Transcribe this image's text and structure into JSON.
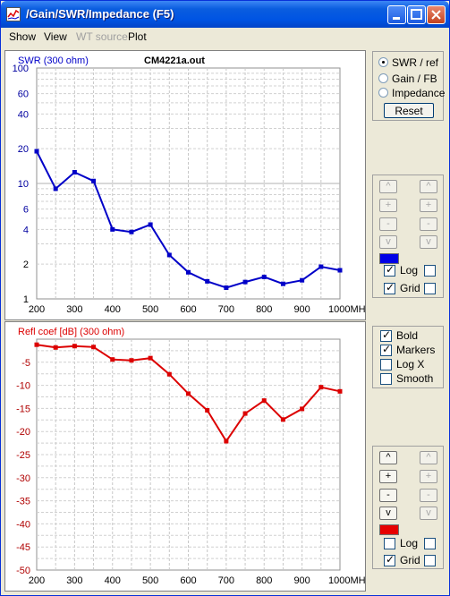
{
  "window": {
    "title": "/Gain/SWR/Impedance (F5)",
    "buttons": [
      "minimize",
      "maximize",
      "close"
    ]
  },
  "menu": {
    "items": [
      {
        "label": "Show",
        "enabled": true
      },
      {
        "label": "View",
        "enabled": true
      },
      {
        "label": "WT source",
        "enabled": false
      },
      {
        "label": "Plot",
        "enabled": true
      }
    ]
  },
  "chart_data": [
    {
      "type": "line",
      "title": "CM4221a.out",
      "ylabel": "SWR (300 ohm)",
      "xunit": "MHz",
      "x_ticks": [
        "200",
        "300",
        "400",
        "500",
        "600",
        "700",
        "800",
        "900",
        "1000MHz"
      ],
      "y_scale": "log",
      "y_ticks": [
        "100",
        "60",
        "40",
        "20",
        "10",
        "6",
        "4",
        "2",
        "1"
      ],
      "ylim": [
        1,
        100
      ],
      "xlim": [
        200,
        1000
      ],
      "grid": true,
      "color": "#0000c8",
      "series": [
        {
          "x": [
            200,
            250,
            300,
            350,
            400,
            450,
            500,
            550,
            600,
            650,
            700,
            750,
            800,
            850,
            900,
            950,
            1000
          ],
          "values": [
            19,
            9,
            12.5,
            10.5,
            4,
            3.8,
            4.4,
            2.4,
            1.7,
            1.42,
            1.25,
            1.4,
            1.55,
            1.35,
            1.45,
            1.9,
            1.77
          ]
        }
      ]
    },
    {
      "type": "line",
      "ylabel": "Refl coef [dB] (300 ohm)",
      "x_ticks": [
        "200",
        "300",
        "400",
        "500",
        "600",
        "700",
        "800",
        "900",
        "1000MHz"
      ],
      "y_ticks": [
        "-5",
        "-10",
        "-15",
        "-20",
        "-25",
        "-30",
        "-35",
        "-40",
        "-45",
        "-50"
      ],
      "ylim": [
        -50,
        0
      ],
      "xlim": [
        200,
        1000
      ],
      "grid": true,
      "color": "#dc0000",
      "series": [
        {
          "x": [
            200,
            250,
            300,
            350,
            400,
            450,
            500,
            550,
            600,
            650,
            700,
            750,
            800,
            850,
            900,
            950,
            1000
          ],
          "values": [
            -1.2,
            -1.8,
            -1.5,
            -1.7,
            -4.4,
            -4.6,
            -4.1,
            -7.6,
            -11.8,
            -15.4,
            -22.1,
            -16.1,
            -13.3,
            -17.4,
            -15.1,
            -10.4,
            -11.3
          ]
        }
      ]
    }
  ],
  "panel1": {
    "radios": [
      {
        "label": "SWR / ref",
        "selected": true
      },
      {
        "label": "Gain / FB",
        "selected": false
      },
      {
        "label": "Impedance",
        "selected": false
      }
    ],
    "reset_label": "Reset"
  },
  "panel2": {
    "swatch_color": "#0000e6",
    "log_label": "Log",
    "grid_label": "Grid",
    "log_checked": true,
    "grid_checked": true
  },
  "panel3": {
    "checks": [
      {
        "label": "Bold",
        "checked": true
      },
      {
        "label": "Markers",
        "checked": true
      },
      {
        "label": "Log X",
        "checked": false
      },
      {
        "label": "Smooth",
        "checked": false
      }
    ]
  },
  "panel4": {
    "swatch_color": "#e60000",
    "log_label": "Log",
    "grid_label": "Grid",
    "log_checked": false,
    "grid_checked": true
  },
  "stepper_symbols": {
    "up": "^",
    "plus": "+",
    "minus": "-",
    "down": "v"
  }
}
